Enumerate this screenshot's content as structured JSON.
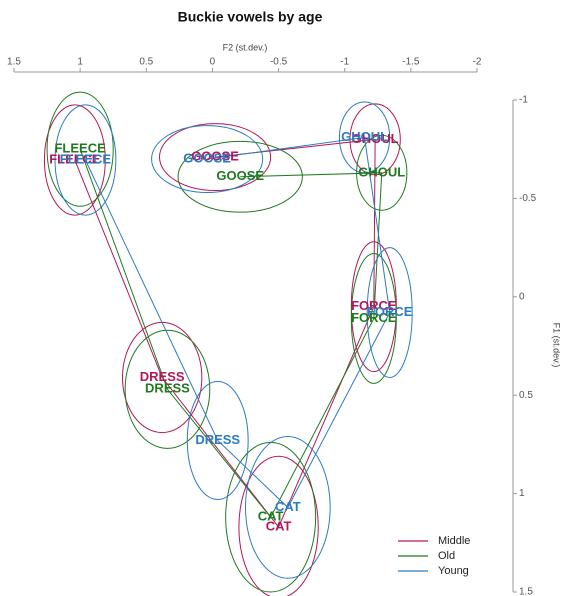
{
  "chart_data": {
    "type": "vowel",
    "title": "Buckie vowels by age",
    "x_label": "F2 (st.dev.)",
    "y_label": "F1 (st.dev.)",
    "xlim": [
      1.5,
      -2
    ],
    "xticks": [
      1.5,
      1,
      0.5,
      0,
      -0.5,
      -1,
      -1.5,
      -2
    ],
    "ylim": [
      -1,
      1.5
    ],
    "yticks": [
      -1,
      -0.5,
      0,
      0.5,
      1,
      1.5
    ],
    "legend": "bottom-right",
    "series": [
      {
        "name": "Middle",
        "color": "#b5175a",
        "vowels": [
          "FLEECE",
          "DRESS",
          "CAT",
          "FORCE",
          "GHOUL",
          "GOOSE"
        ],
        "x": [
          1.04,
          0.38,
          -0.5,
          -1.22,
          -1.23,
          -0.02
        ],
        "y": [
          -0.695,
          0.41,
          1.17,
          0.05,
          -0.8,
          -0.71
        ],
        "rx": [
          0.23,
          0.3,
          0.3,
          0.17,
          0.19,
          0.42
        ],
        "ry": [
          0.28,
          0.28,
          0.36,
          0.33,
          0.18,
          0.17
        ]
      },
      {
        "name": "Old",
        "color": "#1f7a1f",
        "vowels": [
          "FLEECE",
          "DRESS",
          "CAT",
          "FORCE",
          "GHOUL",
          "GOOSE"
        ],
        "x": [
          1.0,
          0.34,
          -0.44,
          -1.22,
          -1.28,
          -0.21
        ],
        "y": [
          -0.75,
          0.47,
          1.12,
          0.11,
          -0.63,
          -0.61
        ],
        "rx": [
          0.25,
          0.32,
          0.34,
          0.17,
          0.19,
          0.47
        ],
        "ry": [
          0.29,
          0.3,
          0.38,
          0.33,
          0.19,
          0.18
        ]
      },
      {
        "name": "Young",
        "color": "#2b7bc4",
        "vowels": [
          "FLEECE",
          "DRESS",
          "CAT",
          "FORCE",
          "GHOUL",
          "GOOSE"
        ],
        "x": [
          0.96,
          -0.04,
          -0.57,
          -1.34,
          -1.15,
          0.04
        ],
        "y": [
          -0.695,
          0.73,
          1.07,
          0.08,
          -0.81,
          -0.7
        ],
        "rx": [
          0.23,
          0.23,
          0.32,
          0.17,
          0.19,
          0.42
        ],
        "ry": [
          0.28,
          0.3,
          0.36,
          0.33,
          0.18,
          0.17
        ]
      }
    ]
  }
}
